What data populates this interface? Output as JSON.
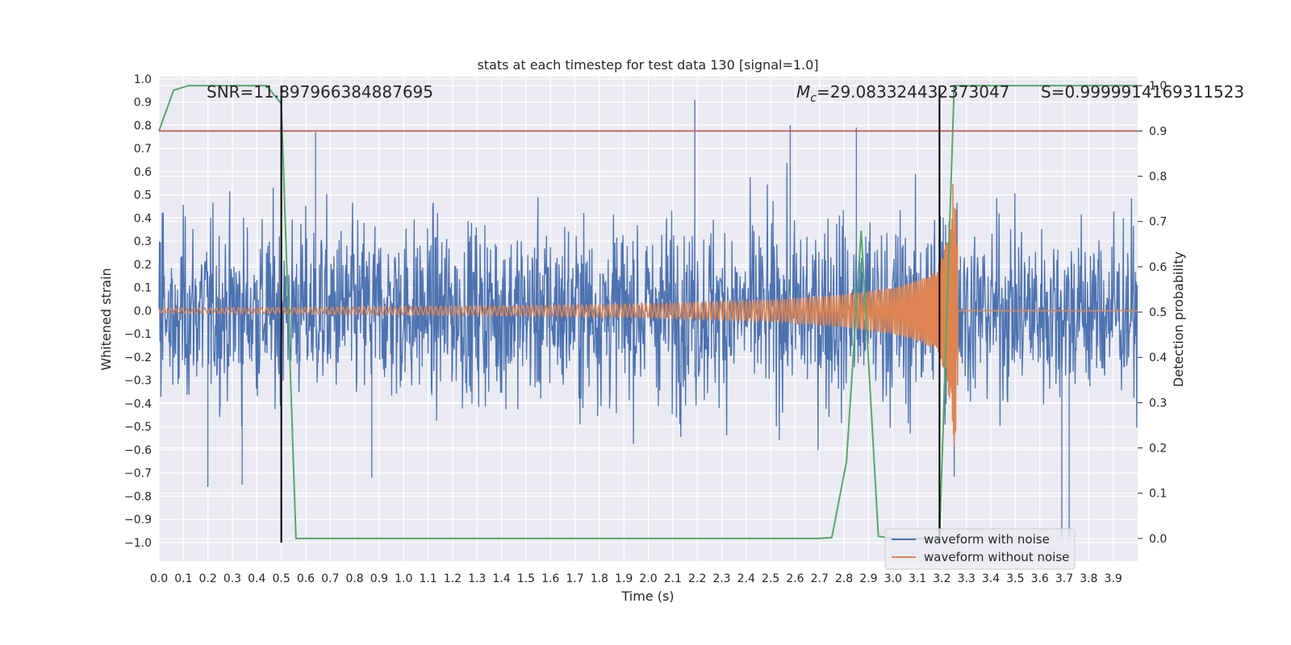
{
  "chart_data": {
    "type": "line",
    "title": "stats at each timestep for test data 130 [signal=1.0]",
    "xlabel": "Time (s)",
    "ylabel": "Whitened strain",
    "y2label": "Detection probability",
    "xlim": [
      0.0,
      4.0
    ],
    "ylim": [
      -1.08,
      1.01
    ],
    "y2lim": [
      -0.05,
      1.02
    ],
    "xticks": [
      "0.0",
      "0.1",
      "0.2",
      "0.3",
      "0.4",
      "0.5",
      "0.6",
      "0.7",
      "0.8",
      "0.9",
      "1.0",
      "1.1",
      "1.2",
      "1.3",
      "1.4",
      "1.5",
      "1.6",
      "1.7",
      "1.8",
      "1.9",
      "2.0",
      "2.1",
      "2.2",
      "2.3",
      "2.4",
      "2.5",
      "2.6",
      "2.7",
      "2.8",
      "2.9",
      "3.0",
      "3.1",
      "3.2",
      "3.3",
      "3.4",
      "3.5",
      "3.6",
      "3.7",
      "3.8",
      "3.9"
    ],
    "yticks": [
      "1.0",
      "0.9",
      "0.8",
      "0.7",
      "0.6",
      "0.5",
      "0.4",
      "0.3",
      "0.2",
      "0.1",
      "0.0",
      "−0.1",
      "−0.2",
      "−0.3",
      "−0.4",
      "−0.5",
      "−0.6",
      "−0.7",
      "−0.8",
      "−0.9",
      "−1.0"
    ],
    "y2ticks": [
      "1.0",
      "0.9",
      "0.8",
      "0.7",
      "0.6",
      "0.5",
      "0.4",
      "0.3",
      "0.2",
      "0.1",
      "0.0"
    ],
    "grid": true,
    "legend_position": "lower-right",
    "annotations": {
      "snr": "SNR=11.897966384887695",
      "mc_symbol": "M",
      "mc_sub": "c",
      "mc_value": "=29.083324432373047",
      "s": "S=0.9999914169311523"
    },
    "threshold": 0.9,
    "vertical_markers": [
      0.5,
      3.19
    ],
    "series": [
      {
        "name": "waveform with noise",
        "color": "#4c72b0",
        "axis": "left",
        "description": "dense noisy strain, amplitude mostly within ±0.5 with spikes to ~0.9 and ~-0.99",
        "peaks": [
          [
            0.5,
            0.82
          ],
          [
            0.64,
            0.77
          ],
          [
            2.19,
            0.91
          ],
          [
            2.58,
            0.8
          ],
          [
            2.85,
            0.79
          ],
          [
            3.69,
            -0.98
          ],
          [
            0.2,
            -0.76
          ],
          [
            0.34,
            -0.75
          ],
          [
            0.87,
            -0.72
          ],
          [
            3.72,
            -0.98
          ]
        ]
      },
      {
        "name": "waveform without noise",
        "color": "#dd8452",
        "axis": "left",
        "description": "chirp signal growing in amplitude and frequency, merger near t=3.26 s, then zero",
        "envelope": [
          [
            0.0,
            0.01
          ],
          [
            0.5,
            0.013
          ],
          [
            1.0,
            0.018
          ],
          [
            1.5,
            0.022
          ],
          [
            2.0,
            0.03
          ],
          [
            2.5,
            0.045
          ],
          [
            2.8,
            0.07
          ],
          [
            3.0,
            0.1
          ],
          [
            3.1,
            0.13
          ],
          [
            3.18,
            0.17
          ],
          [
            3.22,
            0.3
          ],
          [
            3.25,
            0.6
          ],
          [
            3.27,
            0.35
          ],
          [
            3.28,
            0.0
          ],
          [
            4.0,
            0.0
          ]
        ]
      },
      {
        "name": "detection probability",
        "color": "#55a868",
        "axis": "right",
        "x": [
          0.0,
          0.06,
          0.12,
          0.18,
          0.25,
          0.31,
          0.37,
          0.44,
          0.5,
          0.56,
          0.62,
          2.69,
          2.75,
          2.81,
          2.87,
          2.94,
          3.0,
          3.06,
          3.12,
          3.19,
          3.25,
          3.31,
          3.37,
          3.44,
          4.0
        ],
        "y": [
          0.9,
          0.99,
          1.0,
          1.0,
          1.0,
          1.0,
          1.0,
          1.0,
          0.96,
          0.0,
          0.0,
          0.0,
          0.002,
          0.17,
          0.68,
          0.005,
          0.0,
          0.0,
          0.0,
          0.0,
          1.0,
          1.0,
          1.0,
          1.0,
          1.0
        ]
      },
      {
        "name": "threshold",
        "color": "#c44e52",
        "axis": "right",
        "x": [
          0.0,
          4.0
        ],
        "y": [
          0.9,
          0.9
        ]
      }
    ]
  }
}
